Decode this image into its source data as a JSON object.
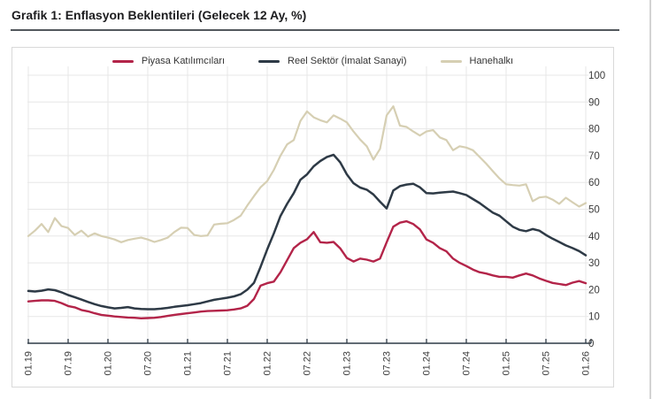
{
  "page": {
    "title": "Grafik 1: Enflasyon Beklentileri (Gelecek 12 Ay, %)"
  },
  "colors": {
    "market_participants_line": "#b32449",
    "real_sector_line": "#2e3a46",
    "households_line": "#d6cfb3",
    "grid": "#e7e7e7",
    "axis": "#2e3a46",
    "tick_label": "#3b3b3b",
    "title_text": "#1d1d1f",
    "title_rule": "#53585d",
    "card_border": "#d9d9d9"
  },
  "chart_data": {
    "type": "line",
    "title": "Grafik 1: Enflasyon Beklentileri (Gelecek 12 Ay, %)",
    "xlabel": "",
    "ylabel": "",
    "ylim": [
      0,
      100
    ],
    "y_ticks": [
      0,
      10,
      20,
      30,
      40,
      50,
      60,
      70,
      80,
      90,
      100
    ],
    "y_axis_side": "right",
    "grid": true,
    "legend_position": "top",
    "x_monthly_range": [
      "2019-01",
      "2026-01"
    ],
    "x_tick_every_months": 6,
    "x_tick_labels": [
      "01.19",
      "07.19",
      "01.20",
      "07.20",
      "01.21",
      "07.21",
      "01.22",
      "07.22",
      "01.23",
      "07.23",
      "01.24",
      "07.24",
      "01.25",
      "07.25",
      "01.26"
    ],
    "series": [
      {
        "name": "Piyasa Katılımcıları",
        "color": "#b32449",
        "values": [
          15.6,
          15.8,
          16.0,
          16.0,
          15.8,
          15.0,
          13.9,
          13.4,
          12.4,
          11.9,
          11.2,
          10.6,
          10.3,
          10.0,
          9.8,
          9.6,
          9.5,
          9.3,
          9.4,
          9.5,
          9.8,
          10.2,
          10.6,
          10.9,
          11.2,
          11.5,
          11.8,
          12.0,
          12.1,
          12.2,
          12.3,
          12.6,
          13.0,
          14.0,
          16.5,
          21.5,
          22.4,
          23.0,
          26.5,
          31.0,
          35.5,
          37.5,
          38.8,
          41.5,
          37.7,
          37.5,
          37.8,
          35.4,
          31.8,
          30.5,
          31.6,
          31.2,
          30.5,
          31.6,
          37.7,
          43.5,
          45.0,
          45.5,
          44.5,
          42.5,
          38.7,
          37.5,
          35.5,
          34.3,
          31.6,
          30.0,
          28.8,
          27.5,
          26.5,
          26.0,
          25.3,
          24.8,
          24.8,
          24.5,
          25.3,
          26.0,
          25.3,
          24.2,
          23.3,
          22.5,
          22.1,
          21.7,
          22.6,
          23.2,
          22.4
        ]
      },
      {
        "name": "Reel Sektör (İmalat Sanayi)",
        "color": "#2e3a46",
        "values": [
          19.5,
          19.3,
          19.6,
          20.1,
          19.8,
          19.0,
          18.0,
          17.2,
          16.3,
          15.4,
          14.6,
          13.9,
          13.4,
          13.0,
          13.2,
          13.5,
          13.0,
          12.8,
          12.7,
          12.7,
          12.9,
          13.2,
          13.6,
          13.9,
          14.2,
          14.6,
          15.0,
          15.6,
          16.2,
          16.6,
          17.0,
          17.5,
          18.3,
          20.0,
          22.5,
          28.5,
          35.0,
          41.0,
          47.5,
          52.0,
          56.0,
          61.0,
          63.0,
          66.0,
          68.0,
          69.5,
          70.3,
          67.5,
          63.0,
          59.7,
          58.1,
          57.3,
          55.5,
          52.8,
          50.3,
          57.0,
          58.6,
          59.2,
          59.5,
          58.2,
          56.0,
          55.9,
          56.2,
          56.4,
          56.6,
          56.0,
          55.3,
          53.8,
          52.3,
          50.5,
          48.7,
          47.6,
          45.5,
          43.5,
          42.3,
          41.8,
          42.6,
          42.0,
          40.4,
          39.0,
          37.8,
          36.5,
          35.5,
          34.4,
          32.8
        ]
      },
      {
        "name": "Hanehalkı",
        "color": "#d6cfb3",
        "values": [
          40.0,
          42.0,
          44.5,
          41.5,
          46.7,
          43.7,
          43.0,
          40.4,
          42.0,
          39.8,
          41.0,
          40.0,
          39.4,
          38.7,
          37.7,
          38.5,
          39.0,
          39.4,
          38.7,
          37.8,
          38.5,
          39.4,
          41.5,
          43.1,
          43.0,
          40.4,
          40.0,
          40.2,
          44.3,
          44.6,
          44.8,
          46.0,
          47.6,
          51.4,
          54.9,
          58.2,
          60.5,
          64.7,
          70.0,
          74.2,
          75.8,
          82.9,
          86.5,
          84.3,
          83.2,
          82.4,
          85.0,
          83.8,
          82.4,
          79.0,
          76.0,
          73.5,
          68.5,
          72.5,
          85.0,
          88.4,
          81.2,
          80.7,
          79.0,
          77.5,
          79.0,
          79.5,
          76.8,
          75.8,
          72.0,
          73.5,
          73.0,
          72.0,
          69.5,
          67.0,
          64.2,
          61.5,
          59.3,
          59.0,
          58.8,
          59.3,
          53.0,
          54.4,
          54.7,
          53.6,
          52.0,
          54.3,
          52.6,
          51.0,
          52.3
        ]
      }
    ]
  }
}
